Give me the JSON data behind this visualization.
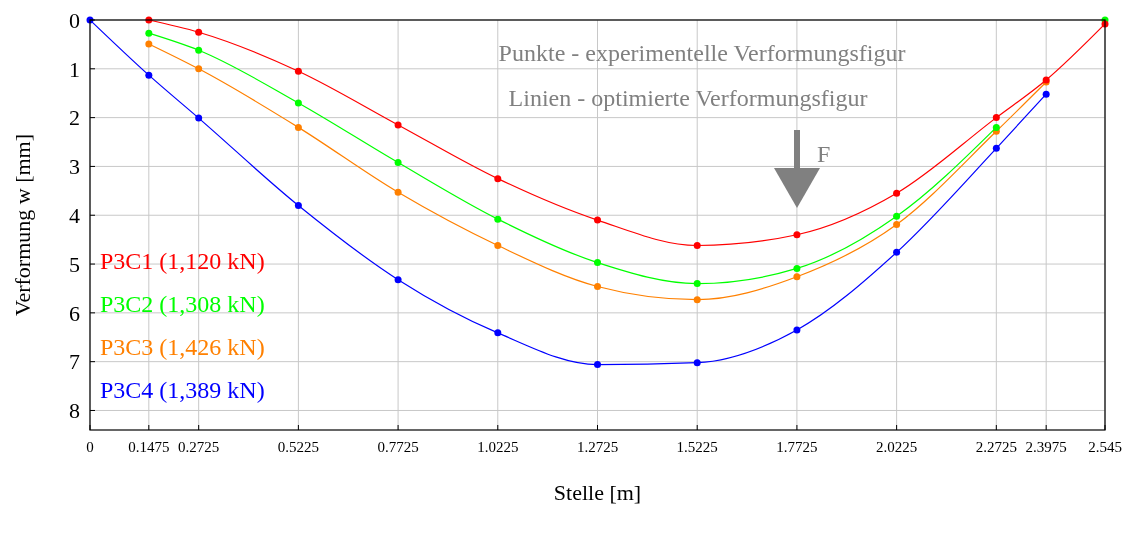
{
  "chart_data": {
    "type": "line",
    "xlabel": "Stelle [m]",
    "ylabel": "Verformung w [mm]",
    "annotations": [
      "Punkte - experimentelle Verformungsfigur",
      "Linien - optimierte Verformungsfigur",
      "F"
    ],
    "x": [
      0,
      0.1475,
      0.2725,
      0.5225,
      0.7725,
      1.0225,
      1.2725,
      1.5225,
      1.7725,
      2.0225,
      2.2725,
      2.3975,
      2.545
    ],
    "xlim": [
      0,
      2.545
    ],
    "xticks": [
      0,
      0.1475,
      0.2725,
      0.5225,
      0.7725,
      1.0225,
      1.2725,
      1.5225,
      1.7725,
      2.0225,
      2.2725,
      2.3975,
      2.545
    ],
    "ylim": [
      8.4,
      0
    ],
    "yticks": [
      0,
      1,
      2,
      3,
      4,
      5,
      6,
      7,
      8
    ],
    "grid": true,
    "legend": "bottom left",
    "marker": "circle",
    "line_style": "solid",
    "series": [
      {
        "name": "P3C1 (1,120 kN)",
        "color": "#ff0000",
        "values": [
          null,
          0.0,
          0.25,
          1.05,
          2.15,
          3.25,
          4.1,
          4.62,
          4.4,
          3.55,
          2.0,
          1.23,
          0.08
        ]
      },
      {
        "name": "P3C2 (1,308 kN)",
        "color": "#00ff00",
        "values": [
          null,
          0.27,
          0.62,
          1.7,
          2.92,
          4.08,
          4.97,
          5.4,
          5.09,
          4.02,
          2.2,
          null,
          0.0
        ]
      },
      {
        "name": "P3C3 (1,426 kN)",
        "color": "#ff8000",
        "values": [
          null,
          0.49,
          1.0,
          2.2,
          3.53,
          4.62,
          5.46,
          5.73,
          5.26,
          4.19,
          2.28,
          1.27,
          null
        ]
      },
      {
        "name": "P3C4 (1,389 kN)",
        "color": "#0000ff",
        "values": [
          0.0,
          1.13,
          2.01,
          3.8,
          5.32,
          6.41,
          7.06,
          7.02,
          6.35,
          4.76,
          2.63,
          1.52,
          null
        ]
      }
    ]
  }
}
